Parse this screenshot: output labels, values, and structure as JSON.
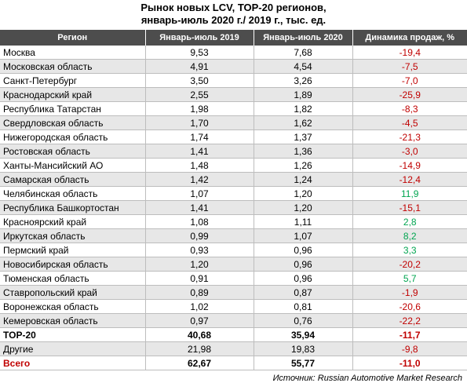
{
  "title": {
    "line1": "Рынок новых LCV, TOP-20 регионов,",
    "line2": "январь-июль 2020 г./ 2019 г., тыс. ед."
  },
  "headers": [
    "Регион",
    "Январь-июль 2019",
    "Январь-июль 2020",
    "Динамика продаж, %"
  ],
  "rows": [
    {
      "region": "Москва",
      "y2019": "9,53",
      "y2020": "7,68",
      "dyn": "-19,4",
      "sign": "neg"
    },
    {
      "region": "Московская область",
      "y2019": "4,91",
      "y2020": "4,54",
      "dyn": "-7,5",
      "sign": "neg"
    },
    {
      "region": "Санкт-Петербург",
      "y2019": "3,50",
      "y2020": "3,26",
      "dyn": "-7,0",
      "sign": "neg"
    },
    {
      "region": "Краснодарский край",
      "y2019": "2,55",
      "y2020": "1,89",
      "dyn": "-25,9",
      "sign": "neg"
    },
    {
      "region": "Республика Татарстан",
      "y2019": "1,98",
      "y2020": "1,82",
      "dyn": "-8,3",
      "sign": "neg"
    },
    {
      "region": "Свердловская область",
      "y2019": "1,70",
      "y2020": "1,62",
      "dyn": "-4,5",
      "sign": "neg"
    },
    {
      "region": "Нижегородская область",
      "y2019": "1,74",
      "y2020": "1,37",
      "dyn": "-21,3",
      "sign": "neg"
    },
    {
      "region": "Ростовская область",
      "y2019": "1,41",
      "y2020": "1,36",
      "dyn": "-3,0",
      "sign": "neg"
    },
    {
      "region": "Ханты-Мансийский АО",
      "y2019": "1,48",
      "y2020": "1,26",
      "dyn": "-14,9",
      "sign": "neg"
    },
    {
      "region": "Самарская область",
      "y2019": "1,42",
      "y2020": "1,24",
      "dyn": "-12,4",
      "sign": "neg"
    },
    {
      "region": "Челябинская область",
      "y2019": "1,07",
      "y2020": "1,20",
      "dyn": "11,9",
      "sign": "pos"
    },
    {
      "region": "Республика Башкортостан",
      "y2019": "1,41",
      "y2020": "1,20",
      "dyn": "-15,1",
      "sign": "neg"
    },
    {
      "region": "Красноярский край",
      "y2019": "1,08",
      "y2020": "1,11",
      "dyn": "2,8",
      "sign": "pos"
    },
    {
      "region": "Иркутская область",
      "y2019": "0,99",
      "y2020": "1,07",
      "dyn": "8,2",
      "sign": "pos"
    },
    {
      "region": "Пермский край",
      "y2019": "0,93",
      "y2020": "0,96",
      "dyn": "3,3",
      "sign": "pos"
    },
    {
      "region": "Новосибирская область",
      "y2019": "1,20",
      "y2020": "0,96",
      "dyn": "-20,2",
      "sign": "neg"
    },
    {
      "region": "Тюменская область",
      "y2019": "0,91",
      "y2020": "0,96",
      "dyn": "5,7",
      "sign": "pos"
    },
    {
      "region": "Ставропольский край",
      "y2019": "0,89",
      "y2020": "0,87",
      "dyn": "-1,9",
      "sign": "neg"
    },
    {
      "region": "Воронежская область",
      "y2019": "1,02",
      "y2020": "0,81",
      "dyn": "-20,6",
      "sign": "neg"
    },
    {
      "region": "Кемеровская область",
      "y2019": "0,97",
      "y2020": "0,76",
      "dyn": "-22,2",
      "sign": "neg"
    }
  ],
  "summary": [
    {
      "region": "TOP-20",
      "y2019": "40,68",
      "y2020": "35,94",
      "dyn": "-11,7",
      "sign": "neg",
      "kind": "total"
    },
    {
      "region": "Другие",
      "y2019": "21,98",
      "y2020": "19,83",
      "dyn": "-9,8",
      "sign": "neg",
      "kind": "other"
    },
    {
      "region": "Всего",
      "y2019": "62,67",
      "y2020": "55,77",
      "dyn": "-11,0",
      "sign": "neg",
      "kind": "grand"
    }
  ],
  "source": "Источник: Russian Automotive Market Research",
  "colors": {
    "negative": "#c00000",
    "positive": "#00a550",
    "header_bg": "#4d4d4d"
  }
}
